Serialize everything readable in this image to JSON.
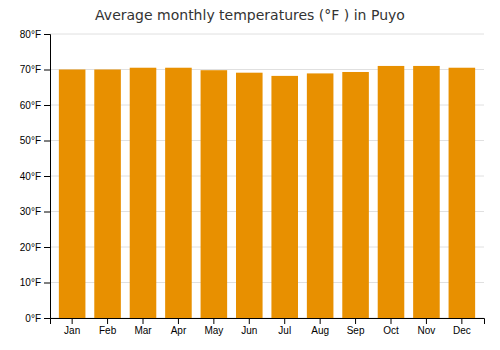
{
  "chart_data": {
    "type": "bar",
    "title": "Average monthly temperatures (°F ) in Puyo",
    "categories": [
      "Jan",
      "Feb",
      "Mar",
      "Apr",
      "May",
      "Jun",
      "Jul",
      "Aug",
      "Sep",
      "Oct",
      "Nov",
      "Dec"
    ],
    "values": [
      70.0,
      70.0,
      70.5,
      70.5,
      69.8,
      69.1,
      68.2,
      68.9,
      69.3,
      71.0,
      71.0,
      70.5
    ],
    "color": "#E89000",
    "ylim": [
      0,
      80
    ],
    "yticks": [
      {
        "value": 0,
        "label": "0°F"
      },
      {
        "value": 10,
        "label": "10°F"
      },
      {
        "value": 20,
        "label": "20°F"
      },
      {
        "value": 30,
        "label": "30°F"
      },
      {
        "value": 40,
        "label": "40°F"
      },
      {
        "value": 50,
        "label": "50°F"
      },
      {
        "value": 60,
        "label": "60°F"
      },
      {
        "value": 70,
        "label": "70°F"
      },
      {
        "value": 80,
        "label": "80°F"
      }
    ],
    "grid": true
  }
}
